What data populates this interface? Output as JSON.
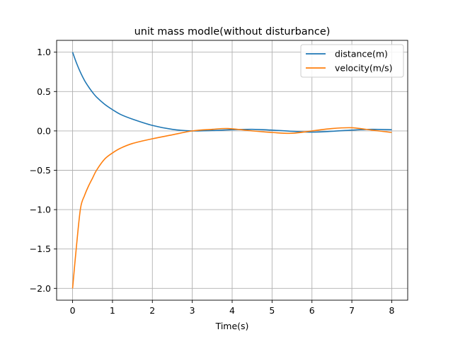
{
  "chart_data": {
    "type": "line",
    "title": "unit mass modle(without disturbance)",
    "xlabel": "Time(s)",
    "ylabel": "",
    "xlim": [
      -0.4,
      8.4
    ],
    "ylim": [
      -2.15,
      1.15
    ],
    "xticks": [
      0,
      1,
      2,
      3,
      4,
      5,
      6,
      7,
      8
    ],
    "xtick_labels": [
      "0",
      "1",
      "2",
      "3",
      "4",
      "5",
      "6",
      "7",
      "8"
    ],
    "yticks": [
      1.0,
      0.5,
      0.0,
      -0.5,
      -1.0,
      -1.5,
      -2.0
    ],
    "ytick_labels": [
      "1.0",
      "0.5",
      "0.0",
      "−0.5",
      "−1.0",
      "−1.5",
      "−2.0"
    ],
    "grid": true,
    "legend_position": "top-right",
    "series": [
      {
        "name": "distance(m)",
        "color": "#1f77b4",
        "x": [
          0,
          0.1,
          0.2,
          0.3,
          0.4,
          0.5,
          0.6,
          0.8,
          1.0,
          1.2,
          1.5,
          2.0,
          2.5,
          3.0,
          3.5,
          4.0,
          4.5,
          5.0,
          5.5,
          6.0,
          6.5,
          7.0,
          7.5,
          8.0
        ],
        "y": [
          1.0,
          0.86,
          0.74,
          0.64,
          0.56,
          0.49,
          0.43,
          0.34,
          0.27,
          0.21,
          0.15,
          0.07,
          0.02,
          0.0,
          0.005,
          0.015,
          0.02,
          0.01,
          -0.005,
          -0.015,
          -0.005,
          0.01,
          0.02,
          0.015
        ]
      },
      {
        "name": "velocity(m/s)",
        "color": "#ff7f0e",
        "x": [
          0,
          0.1,
          0.2,
          0.3,
          0.4,
          0.5,
          0.6,
          0.8,
          1.0,
          1.2,
          1.5,
          2.0,
          2.5,
          3.0,
          3.5,
          3.9,
          4.5,
          5.0,
          5.5,
          6.0,
          6.5,
          7.0,
          7.5,
          8.0
        ],
        "y": [
          -2.0,
          -1.45,
          -0.98,
          -0.82,
          -0.7,
          -0.6,
          -0.5,
          -0.36,
          -0.28,
          -0.22,
          -0.16,
          -0.1,
          -0.05,
          0.0,
          0.02,
          0.03,
          0.0,
          -0.02,
          -0.03,
          0.0,
          0.03,
          0.04,
          0.01,
          -0.02
        ]
      }
    ]
  }
}
